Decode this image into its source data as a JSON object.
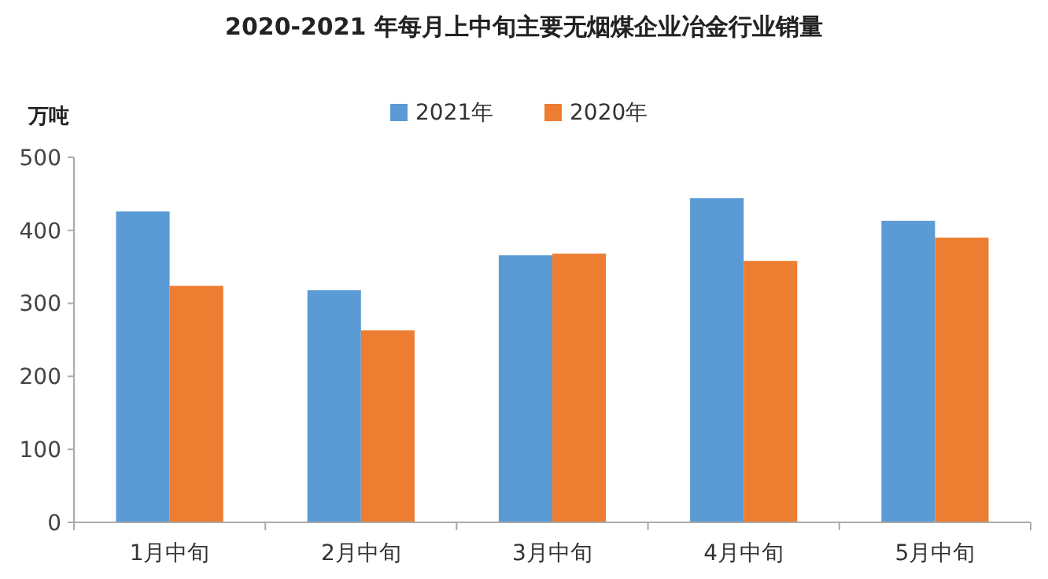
{
  "chart_data": {
    "type": "bar",
    "title": "2020-2021 年每月上中旬主要无烟煤企业冶金行业销量",
    "ylabel": "万吨",
    "categories": [
      "1月中旬",
      "2月中旬",
      "3月中旬",
      "4月中旬",
      "5月中旬"
    ],
    "series": [
      {
        "name": "2021年",
        "color": "#5b9bd5",
        "values": [
          426,
          318,
          366,
          444,
          413
        ]
      },
      {
        "name": "2020年",
        "color": "#ed7d31",
        "values": [
          324,
          263,
          368,
          358,
          390
        ]
      }
    ],
    "ylim": [
      0,
      500
    ],
    "yticks": [
      0,
      100,
      200,
      300,
      400,
      500
    ],
    "grid": false,
    "legend": "top"
  }
}
